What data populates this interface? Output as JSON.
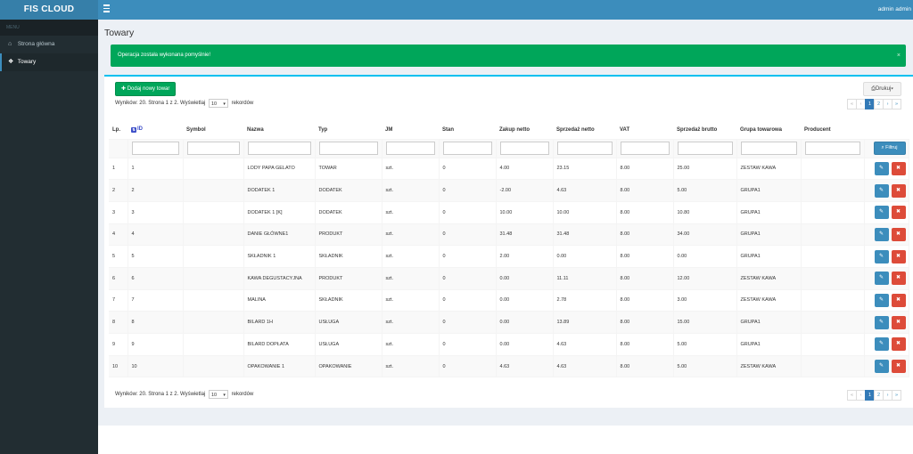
{
  "app": {
    "logo": "FIS CLOUD",
    "user": "admin admin"
  },
  "sidebar": {
    "header": "MENU",
    "items": [
      {
        "label": "Strona główna",
        "icon": "home-icon"
      },
      {
        "label": "Towary",
        "icon": "cubes-icon"
      }
    ]
  },
  "page": {
    "title": "Towary",
    "alert": "Operacja została wykonana pomyślnie!",
    "alert_close": "×"
  },
  "toolbar": {
    "add_label": "Dodaj nowy towar",
    "print_label": "Drukuj"
  },
  "info": {
    "text": "Wyników: 20. Strona 1 z 2. Wyświetlaj",
    "per_page": "10",
    "suffix": "rekordów"
  },
  "pager": [
    "«",
    "‹",
    "1",
    "2",
    "›",
    "»"
  ],
  "table": {
    "headers": [
      "Lp.",
      "ID",
      "Symbol",
      "Nazwa",
      "Typ",
      "JM",
      "Stan",
      "Zakup netto",
      "Sprzedaż netto",
      "VAT",
      "Sprzedaż brutto",
      "Grupa towarowa",
      "Producent"
    ],
    "filter_label": "Filtruj",
    "rows": [
      [
        "1",
        "1",
        "",
        "LODY PAPA GELATO",
        "TOWAR",
        "szt.",
        "0",
        "4.00",
        "23.15",
        "8.00",
        "25.00",
        "ZESTAW KAWA",
        ""
      ],
      [
        "2",
        "2",
        "",
        "DODATEK 1",
        "DODATEK",
        "szt.",
        "0",
        "-2.00",
        "4.63",
        "8.00",
        "5.00",
        "GRUPA1",
        ""
      ],
      [
        "3",
        "3",
        "",
        "DODATEK 1 [K]",
        "DODATEK",
        "szt.",
        "0",
        "10.00",
        "10.00",
        "8.00",
        "10.80",
        "GRUPA1",
        ""
      ],
      [
        "4",
        "4",
        "",
        "DANIE GŁÓWNE1",
        "PRODUKT",
        "szt.",
        "0",
        "31.48",
        "31.48",
        "8.00",
        "34.00",
        "GRUPA1",
        ""
      ],
      [
        "5",
        "5",
        "",
        "SKŁADNIK 1",
        "SKŁADNIK",
        "szt.",
        "0",
        "2.00",
        "0.00",
        "8.00",
        "0.00",
        "GRUPA1",
        ""
      ],
      [
        "6",
        "6",
        "",
        "KAWA DEGUSTACYJNA",
        "PRODUKT",
        "szt.",
        "0",
        "0.00",
        "11.11",
        "8.00",
        "12.00",
        "ZESTAW KAWA",
        ""
      ],
      [
        "7",
        "7",
        "",
        "MALINA",
        "SKŁADNIK",
        "szt.",
        "0",
        "0.00",
        "2.78",
        "8.00",
        "3.00",
        "ZESTAW KAWA",
        ""
      ],
      [
        "8",
        "8",
        "",
        "BILARD 1H",
        "USŁUGA",
        "szt.",
        "0",
        "0.00",
        "13.89",
        "8.00",
        "15.00",
        "GRUPA1",
        ""
      ],
      [
        "9",
        "9",
        "",
        "BILARD DOPŁATA",
        "USŁUGA",
        "szt.",
        "0",
        "0.00",
        "4.63",
        "8.00",
        "5.00",
        "GRUPA1",
        ""
      ],
      [
        "10",
        "10",
        "",
        "OPAKOWANIE 1",
        "OPAKOWANIE",
        "szt.",
        "0",
        "4.63",
        "4.63",
        "8.00",
        "5.00",
        "ZESTAW KAWA",
        ""
      ]
    ]
  },
  "colors": {
    "topbar": "#3c8dbc",
    "sidebar": "#222d32",
    "success": "#00a65a",
    "danger": "#dd4b39"
  }
}
